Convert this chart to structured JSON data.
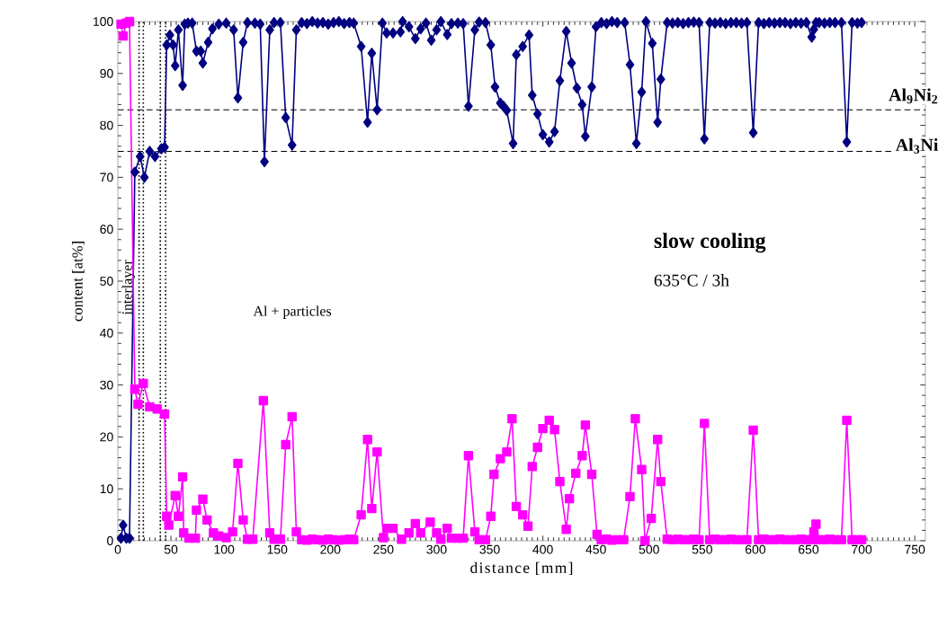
{
  "chart_data": {
    "type": "line",
    "xlabel": "distance [mm]",
    "ylabel": "content [at%]",
    "xlim": [
      0,
      760
    ],
    "xticks": [
      0,
      50,
      100,
      150,
      200,
      250,
      300,
      350,
      400,
      450,
      500,
      550,
      600,
      650,
      700,
      750
    ],
    "ylim": [
      0,
      100
    ],
    "yticks": [
      0,
      10,
      20,
      30,
      40,
      50,
      60,
      70,
      80,
      90,
      100
    ],
    "line_style": "solid",
    "series": [
      {
        "color": "#000080",
        "marker": "diamond",
        "x": [
          3,
          5,
          8,
          11,
          16,
          21,
          25,
          30,
          35,
          41,
          44,
          46,
          49,
          52,
          54,
          57,
          61,
          63,
          66,
          70,
          74,
          78,
          80,
          85,
          89,
          95,
          102,
          109,
          113,
          118,
          122,
          129,
          134,
          138,
          143,
          147,
          153,
          158,
          164,
          168,
          173,
          178,
          183,
          188,
          193,
          198,
          203,
          208,
          213,
          218,
          222,
          229,
          235,
          239,
          244,
          249,
          253,
          259,
          266,
          268,
          274,
          280,
          285,
          290,
          295,
          300,
          304,
          310,
          314,
          320,
          325,
          330,
          336,
          340,
          346,
          351,
          355,
          360,
          363,
          366,
          372,
          375,
          381,
          387,
          390,
          395,
          400,
          406,
          411,
          416,
          422,
          427,
          432,
          437,
          440,
          446,
          450,
          455,
          460,
          465,
          470,
          477,
          482,
          488,
          493,
          497,
          503,
          508,
          511,
          517,
          522,
          527,
          532,
          537,
          542,
          547,
          552,
          557,
          562,
          567,
          572,
          577,
          582,
          587,
          592,
          598,
          603,
          608,
          613,
          618,
          623,
          628,
          633,
          638,
          643,
          648,
          653,
          655,
          657,
          660,
          665,
          670,
          675,
          681,
          686,
          691,
          696,
          700
        ],
        "values": [
          0.5,
          3,
          0.5,
          0.5,
          71,
          74,
          70,
          75,
          74,
          75.5,
          75.8,
          95.5,
          97.4,
          95.5,
          91.5,
          98.4,
          87.7,
          99.5,
          99.7,
          99.7,
          94.3,
          94.3,
          92,
          96,
          98.6,
          99.5,
          99.7,
          98.4,
          85.3,
          96,
          99.8,
          99.7,
          99.5,
          73,
          98.4,
          99.8,
          99.8,
          81.5,
          76.2,
          98.4,
          99.8,
          99.6,
          100,
          99.7,
          99.8,
          99.5,
          99.8,
          100,
          99.6,
          99.8,
          99.7,
          95.2,
          80.6,
          93.9,
          83,
          99.7,
          97.8,
          97.8,
          98,
          100,
          99,
          96.7,
          98.6,
          99.7,
          96.4,
          98.4,
          100,
          97.5,
          99.6,
          99.7,
          99.6,
          83.7,
          98.4,
          99.9,
          99.8,
          95.5,
          87.4,
          84.3,
          83.7,
          82.9,
          76.5,
          93.6,
          95.2,
          97.4,
          85.8,
          82.2,
          78.2,
          76.8,
          78.8,
          88.6,
          98.1,
          92,
          87.2,
          84,
          77.9,
          87.4,
          99,
          99.8,
          99.6,
          100,
          99.8,
          99.8,
          91.7,
          76.5,
          86.4,
          100,
          95.8,
          80.6,
          88.9,
          99.8,
          99.7,
          99.8,
          99.6,
          99.8,
          99.9,
          99.8,
          77.4,
          99.8,
          99.7,
          99.8,
          99.6,
          99.8,
          99.8,
          99.7,
          99.8,
          78.6,
          99.8,
          99.6,
          99.8,
          99.7,
          99.8,
          99.8,
          99.6,
          99.8,
          99.7,
          99.8,
          97,
          98.5,
          99.8,
          99.8,
          99.7,
          99.8,
          99.8,
          99.8,
          76.8,
          99.8,
          99.7,
          99.8
        ]
      },
      {
        "color": "#ff00ff",
        "marker": "square",
        "x": [
          3,
          5,
          8,
          11,
          16,
          19,
          24,
          30,
          37,
          44,
          46,
          48,
          54,
          57,
          61,
          62,
          67,
          73,
          74,
          80,
          84,
          90,
          95,
          102,
          108,
          113,
          118,
          122,
          127,
          137,
          143,
          147,
          153,
          158,
          164,
          168,
          173,
          178,
          183,
          188,
          193,
          198,
          203,
          208,
          213,
          218,
          222,
          229,
          235,
          239,
          244,
          250,
          254,
          259,
          267,
          274,
          280,
          285,
          294,
          300,
          304,
          310,
          314,
          320,
          325,
          330,
          336,
          340,
          346,
          351,
          354,
          360,
          366,
          371,
          375,
          381,
          386,
          390,
          395,
          400,
          406,
          411,
          416,
          422,
          425,
          431,
          437,
          440,
          446,
          451,
          455,
          460,
          465,
          470,
          476,
          482,
          487,
          493,
          496,
          502,
          508,
          511,
          517,
          522,
          527,
          532,
          537,
          542,
          547,
          552,
          557,
          562,
          567,
          572,
          577,
          582,
          587,
          592,
          598,
          603,
          608,
          613,
          618,
          623,
          628,
          633,
          638,
          643,
          648,
          652,
          655,
          657,
          660,
          665,
          670,
          675,
          681,
          686,
          691,
          696,
          700
        ],
        "values": [
          99.5,
          97.2,
          99.7,
          100,
          29.2,
          26.3,
          30.3,
          25.8,
          25.4,
          24.4,
          4.7,
          3,
          8.7,
          4.7,
          12.3,
          1.5,
          0.5,
          0.5,
          5.9,
          8,
          4,
          1.5,
          0.9,
          0.6,
          1.7,
          14.9,
          4,
          0.3,
          0.3,
          27,
          1.5,
          0.3,
          0.3,
          18.5,
          23.9,
          1.7,
          0.2,
          0.1,
          0.3,
          0.2,
          0.1,
          0.3,
          0.2,
          0.1,
          0.2,
          0.3,
          0.2,
          5,
          19.5,
          6.2,
          17.1,
          0.6,
          2.4,
          2.4,
          0.3,
          1.5,
          3.3,
          1.5,
          3.6,
          1.5,
          0.3,
          2.4,
          0.5,
          0.5,
          0.5,
          16.4,
          1.7,
          0.2,
          0.2,
          4.7,
          12.8,
          15.8,
          17.1,
          23.5,
          6.6,
          5,
          2.8,
          14.3,
          18,
          21.6,
          23.2,
          21.4,
          11.4,
          2.2,
          8.1,
          13,
          16.4,
          22.3,
          12.8,
          1.2,
          0.2,
          0.3,
          0.1,
          0.2,
          0.2,
          8.5,
          23.5,
          13.7,
          0,
          4.3,
          19.5,
          11.4,
          0.3,
          0.2,
          0.3,
          0.2,
          0.2,
          0.3,
          0.2,
          22.6,
          0.2,
          0.3,
          0.2,
          0.2,
          0.3,
          0.2,
          0.2,
          0.2,
          21.3,
          0.2,
          0.3,
          0.2,
          0.2,
          0.3,
          0.2,
          0.2,
          0.2,
          0.3,
          0.2,
          0.2,
          1.7,
          3.2,
          0.2,
          0.2,
          0.3,
          0.2,
          0.2,
          23.2,
          0.2,
          0.2,
          0.2
        ]
      }
    ],
    "ref_lines": [
      {
        "axis": "y",
        "value": 83,
        "label": "Al$_{9}$Ni$_{2}$",
        "line_style": "dashed"
      },
      {
        "axis": "y",
        "value": 75,
        "label": "Al$_{3}$Ni",
        "line_style": "dashed"
      },
      {
        "axis": "x",
        "value": 20,
        "line_style": "dotted"
      },
      {
        "axis": "x",
        "value": 24,
        "line_style": "dotted"
      },
      {
        "axis": "x",
        "value": 40,
        "line_style": "dotted"
      },
      {
        "axis": "x",
        "value": 45,
        "line_style": "dotted"
      }
    ],
    "annotations": [
      "slow cooling",
      "635°C / 3h",
      "Al + particles",
      "interlayer"
    ]
  }
}
